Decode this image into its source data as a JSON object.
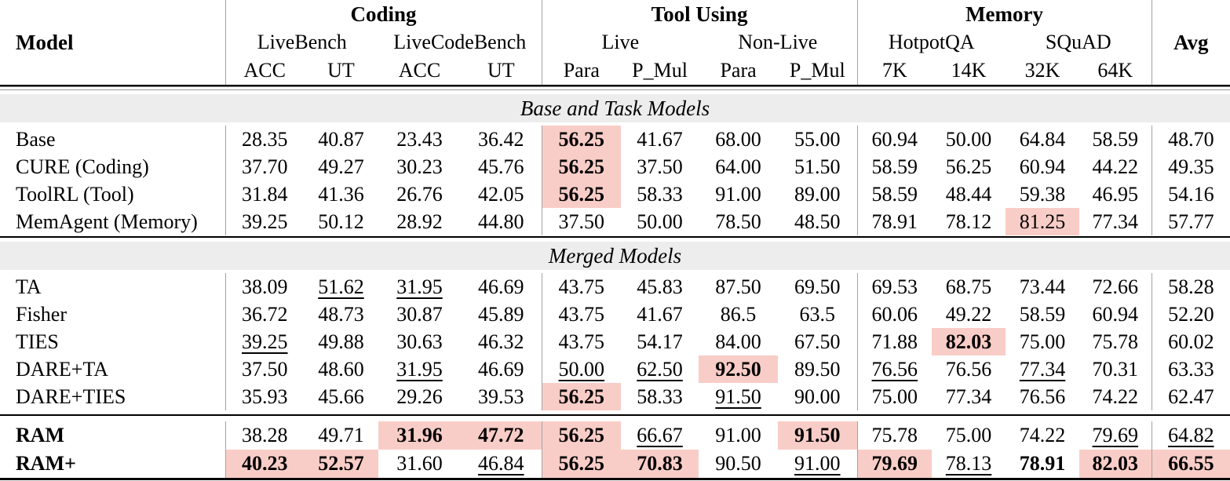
{
  "table": {
    "header": {
      "model_label": "Model",
      "avg_label": "Avg",
      "groups": [
        {
          "label": "Coding",
          "subgroups": [
            {
              "label": "LiveBench",
              "metrics": [
                "ACC",
                "UT"
              ]
            },
            {
              "label": "LiveCodeBench",
              "metrics": [
                "ACC",
                "UT"
              ]
            }
          ]
        },
        {
          "label": "Tool Using",
          "subgroups": [
            {
              "label": "Live",
              "metrics": [
                "Para",
                "P_Mul"
              ]
            },
            {
              "label": "Non-Live",
              "metrics": [
                "Para",
                "P_Mul"
              ]
            }
          ]
        },
        {
          "label": "Memory",
          "subgroups": [
            {
              "label": "HotpotQA",
              "metrics": [
                "7K",
                "14K"
              ]
            },
            {
              "label": "SQuAD",
              "metrics": [
                "32K",
                "64K"
              ]
            }
          ]
        }
      ]
    },
    "highlight_color": "#f9cdc7",
    "band_color": "#ededed",
    "sections": [
      {
        "title": "Base and Task Models",
        "rows": [
          {
            "model": "Base",
            "bold_model": false,
            "cells": [
              {
                "v": "28.35"
              },
              {
                "v": "40.87"
              },
              {
                "v": "23.43"
              },
              {
                "v": "36.42"
              },
              {
                "v": "56.25",
                "b": true,
                "h": true
              },
              {
                "v": "41.67"
              },
              {
                "v": "68.00"
              },
              {
                "v": "55.00"
              },
              {
                "v": "60.94"
              },
              {
                "v": "50.00"
              },
              {
                "v": "64.84"
              },
              {
                "v": "58.59"
              },
              {
                "v": "48.70"
              }
            ]
          },
          {
            "model": "CURE (Coding)",
            "bold_model": false,
            "cells": [
              {
                "v": "37.70"
              },
              {
                "v": "49.27"
              },
              {
                "v": "30.23"
              },
              {
                "v": "45.76"
              },
              {
                "v": "56.25",
                "b": true,
                "h": true
              },
              {
                "v": "37.50"
              },
              {
                "v": "64.00"
              },
              {
                "v": "51.50"
              },
              {
                "v": "58.59"
              },
              {
                "v": "56.25"
              },
              {
                "v": "60.94"
              },
              {
                "v": "44.22"
              },
              {
                "v": "49.35"
              }
            ]
          },
          {
            "model": "ToolRL (Tool)",
            "bold_model": false,
            "cells": [
              {
                "v": "31.84"
              },
              {
                "v": "41.36"
              },
              {
                "v": "26.76"
              },
              {
                "v": "42.05"
              },
              {
                "v": "56.25",
                "b": true,
                "h": true
              },
              {
                "v": "58.33"
              },
              {
                "v": "91.00"
              },
              {
                "v": "89.00"
              },
              {
                "v": "58.59"
              },
              {
                "v": "48.44"
              },
              {
                "v": "59.38"
              },
              {
                "v": "46.95"
              },
              {
                "v": "54.16"
              }
            ]
          },
          {
            "model": "MemAgent (Memory)",
            "bold_model": false,
            "cells": [
              {
                "v": "39.25"
              },
              {
                "v": "50.12"
              },
              {
                "v": "28.92"
              },
              {
                "v": "44.80"
              },
              {
                "v": "37.50"
              },
              {
                "v": "50.00"
              },
              {
                "v": "78.50"
              },
              {
                "v": "48.50"
              },
              {
                "v": "78.91"
              },
              {
                "v": "78.12"
              },
              {
                "v": "81.25",
                "h": true
              },
              {
                "v": "77.34"
              },
              {
                "v": "57.77"
              }
            ]
          }
        ]
      },
      {
        "title": "Merged Models",
        "rows": [
          {
            "model": "TA",
            "bold_model": false,
            "cells": [
              {
                "v": "38.09"
              },
              {
                "v": "51.62",
                "u": true
              },
              {
                "v": "31.95",
                "u": true
              },
              {
                "v": "46.69"
              },
              {
                "v": "43.75"
              },
              {
                "v": "45.83"
              },
              {
                "v": "87.50"
              },
              {
                "v": "69.50"
              },
              {
                "v": "69.53"
              },
              {
                "v": "68.75"
              },
              {
                "v": "73.44"
              },
              {
                "v": "72.66"
              },
              {
                "v": "58.28"
              }
            ]
          },
          {
            "model": "Fisher",
            "bold_model": false,
            "cells": [
              {
                "v": "36.72"
              },
              {
                "v": "48.73"
              },
              {
                "v": "30.87"
              },
              {
                "v": "45.89"
              },
              {
                "v": "43.75"
              },
              {
                "v": "41.67"
              },
              {
                "v": "86.5"
              },
              {
                "v": "63.5"
              },
              {
                "v": "60.06"
              },
              {
                "v": "49.22"
              },
              {
                "v": "58.59"
              },
              {
                "v": "60.94"
              },
              {
                "v": "52.20"
              }
            ]
          },
          {
            "model": "TIES",
            "bold_model": false,
            "cells": [
              {
                "v": "39.25",
                "u": true
              },
              {
                "v": "49.88"
              },
              {
                "v": "30.63"
              },
              {
                "v": "46.32"
              },
              {
                "v": "43.75"
              },
              {
                "v": "54.17"
              },
              {
                "v": "84.00"
              },
              {
                "v": "67.50"
              },
              {
                "v": "71.88"
              },
              {
                "v": "82.03",
                "b": true,
                "h": true
              },
              {
                "v": "75.00"
              },
              {
                "v": "75.78"
              },
              {
                "v": "60.02"
              }
            ]
          },
          {
            "model": "DARE+TA",
            "bold_model": false,
            "cells": [
              {
                "v": "37.50"
              },
              {
                "v": "48.60"
              },
              {
                "v": "31.95",
                "u": true
              },
              {
                "v": "46.69"
              },
              {
                "v": "50.00",
                "u": true
              },
              {
                "v": "62.50",
                "u": true
              },
              {
                "v": "92.50",
                "b": true,
                "h": true
              },
              {
                "v": "89.50"
              },
              {
                "v": "76.56",
                "u": true
              },
              {
                "v": "76.56"
              },
              {
                "v": "77.34",
                "u": true
              },
              {
                "v": "70.31"
              },
              {
                "v": "63.33"
              }
            ]
          },
          {
            "model": "DARE+TIES",
            "bold_model": false,
            "cells": [
              {
                "v": "35.93"
              },
              {
                "v": "45.66"
              },
              {
                "v": "29.26"
              },
              {
                "v": "39.53"
              },
              {
                "v": "56.25",
                "b": true,
                "h": true
              },
              {
                "v": "58.33"
              },
              {
                "v": "91.50",
                "u": true
              },
              {
                "v": "90.00"
              },
              {
                "v": "75.00"
              },
              {
                "v": "77.34"
              },
              {
                "v": "76.56"
              },
              {
                "v": "74.22"
              },
              {
                "v": "62.47"
              }
            ]
          }
        ]
      },
      {
        "title": null,
        "rows": [
          {
            "model": "RAM",
            "bold_model": true,
            "cells": [
              {
                "v": "38.28"
              },
              {
                "v": "49.71"
              },
              {
                "v": "31.96",
                "b": true,
                "h": true
              },
              {
                "v": "47.72",
                "b": true,
                "h": true
              },
              {
                "v": "56.25",
                "b": true,
                "h": true
              },
              {
                "v": "66.67",
                "u": true
              },
              {
                "v": "91.00"
              },
              {
                "v": "91.50",
                "b": true,
                "h": true
              },
              {
                "v": "75.78"
              },
              {
                "v": "75.00"
              },
              {
                "v": "74.22"
              },
              {
                "v": "79.69",
                "u": true
              },
              {
                "v": "64.82",
                "u": true
              }
            ]
          },
          {
            "model": "RAM+",
            "bold_model": true,
            "cells": [
              {
                "v": "40.23",
                "b": true,
                "h": true
              },
              {
                "v": "52.57",
                "b": true,
                "h": true
              },
              {
                "v": "31.60"
              },
              {
                "v": "46.84",
                "u": true
              },
              {
                "v": "56.25",
                "b": true,
                "h": true
              },
              {
                "v": "70.83",
                "b": true,
                "h": true
              },
              {
                "v": "90.50"
              },
              {
                "v": "91.00",
                "u": true
              },
              {
                "v": "79.69",
                "b": true,
                "h": true
              },
              {
                "v": "78.13",
                "u": true
              },
              {
                "v": "78.91",
                "b": true
              },
              {
                "v": "82.03",
                "b": true,
                "h": true
              },
              {
                "v": "66.55",
                "b": true,
                "h": true
              }
            ]
          }
        ]
      }
    ]
  }
}
